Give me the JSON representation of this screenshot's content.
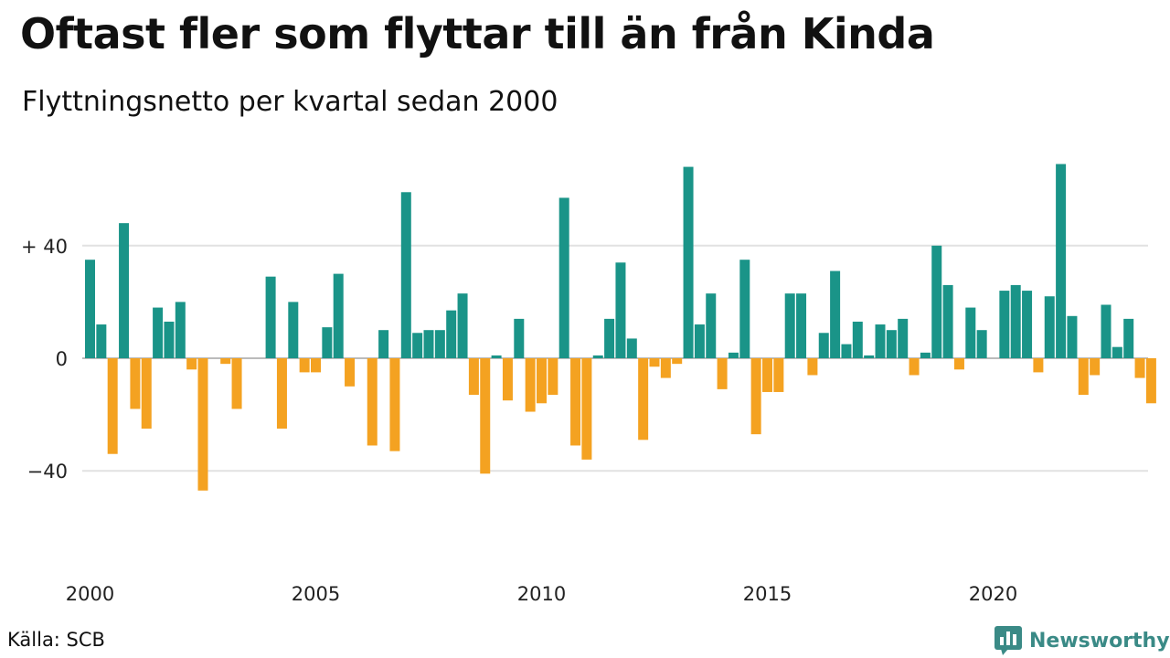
{
  "header": {
    "title": "Oftast fler som flyttar till än från Kinda",
    "subtitle": "Flyttningsnetto per kvartal sedan 2000"
  },
  "footer": {
    "source": "Källa: SCB",
    "brand": "Newsworthy",
    "brand_icon": "bar-chart-logo-icon"
  },
  "colors": {
    "positive": "#1a9488",
    "negative": "#f4a221",
    "grid": "#e2e2e2",
    "zero_line": "#bbbbbb",
    "brand": "#3a8a86"
  },
  "chart_data": {
    "type": "bar",
    "title": "Oftast fler som flyttar till än från Kinda",
    "subtitle": "Flyttningsnetto per kvartal sedan 2000",
    "xlabel": "",
    "ylabel": "",
    "ylim": [
      -60,
      72
    ],
    "y_ticks": [
      {
        "value": 40,
        "label": "+ 40"
      },
      {
        "value": 0,
        "label": "0"
      },
      {
        "value": -40,
        "label": "−40"
      }
    ],
    "x_ticks": [
      "2000",
      "2005",
      "2010",
      "2015",
      "2020"
    ],
    "grid": true,
    "start_year": 2000,
    "periods_per_year": 4,
    "series": [
      {
        "values": [
          35,
          12,
          -34,
          48,
          -18,
          -25,
          18,
          13,
          20,
          -4,
          -47,
          0,
          -2,
          -18,
          0,
          0,
          29,
          -25,
          20,
          -5,
          -5,
          11,
          30,
          -10,
          0,
          -31,
          10,
          -33,
          59,
          9,
          10,
          10,
          17,
          23,
          -13,
          -41,
          1,
          -15,
          14,
          -19,
          -16,
          -13,
          57,
          -31,
          -36,
          1,
          14,
          34,
          7,
          -29,
          -3,
          -7,
          -2,
          68,
          12,
          23,
          -11,
          2,
          35,
          -27,
          -12,
          -12,
          23,
          23,
          -6,
          9,
          31,
          5,
          13,
          1,
          12,
          10,
          14,
          -6,
          2,
          40,
          26,
          -4,
          18,
          10,
          0,
          24,
          26,
          24,
          -5,
          22,
          69,
          15,
          -13,
          -6,
          19,
          4,
          14,
          -7,
          -16
        ]
      }
    ]
  }
}
